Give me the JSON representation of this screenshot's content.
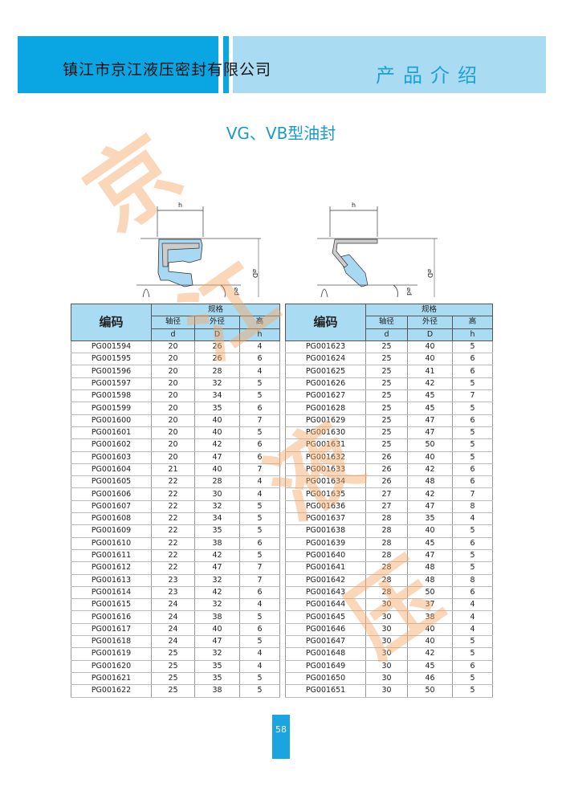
{
  "header": {
    "company": "镇江市京江液压密封有限公司",
    "section": "产品介绍"
  },
  "title": "VG、VB型油封",
  "watermark": [
    "京",
    "江",
    "液",
    "压"
  ],
  "diagram": {
    "h_label": "h",
    "D_label": "⌀D",
    "d_label": "⌀d"
  },
  "colors": {
    "header_blue": "#0aa6e3",
    "header_light": "#a9dcf3",
    "seal_blue": "#a9d8f2",
    "watermark": "#f7a765"
  },
  "table_headers": {
    "code": "编码",
    "spec": "规格",
    "shaft": "轴径",
    "outer": "外径",
    "height": "高",
    "d": "d",
    "D": "D",
    "h": "h"
  },
  "tables": [
    {
      "rows": [
        [
          "PG001594",
          "20",
          "26",
          "4"
        ],
        [
          "PG001595",
          "20",
          "26",
          "6"
        ],
        [
          "PG001596",
          "20",
          "28",
          "4"
        ],
        [
          "PG001597",
          "20",
          "32",
          "5"
        ],
        [
          "PG001598",
          "20",
          "34",
          "5"
        ],
        [
          "PG001599",
          "20",
          "35",
          "6"
        ],
        [
          "PG001600",
          "20",
          "40",
          "7"
        ],
        [
          "PG001601",
          "20",
          "40",
          "5"
        ],
        [
          "PG001602",
          "20",
          "42",
          "6"
        ],
        [
          "PG001603",
          "20",
          "47",
          "6"
        ],
        [
          "PG001604",
          "21",
          "40",
          "7"
        ],
        [
          "PG001605",
          "22",
          "28",
          "4"
        ],
        [
          "PG001606",
          "22",
          "30",
          "4"
        ],
        [
          "PG001607",
          "22",
          "32",
          "5"
        ],
        [
          "PG001608",
          "22",
          "34",
          "5"
        ],
        [
          "PG001609",
          "22",
          "35",
          "5"
        ],
        [
          "PG001610",
          "22",
          "38",
          "6"
        ],
        [
          "PG001611",
          "22",
          "42",
          "5"
        ],
        [
          "PG001612",
          "22",
          "47",
          "7"
        ],
        [
          "PG001613",
          "23",
          "32",
          "7"
        ],
        [
          "PG001614",
          "23",
          "42",
          "6"
        ],
        [
          "PG001615",
          "24",
          "32",
          "4"
        ],
        [
          "PG001616",
          "24",
          "38",
          "5"
        ],
        [
          "PG001617",
          "24",
          "40",
          "6"
        ],
        [
          "PG001618",
          "24",
          "47",
          "5"
        ],
        [
          "PG001619",
          "25",
          "32",
          "4"
        ],
        [
          "PG001620",
          "25",
          "35",
          "4"
        ],
        [
          "PG001621",
          "25",
          "35",
          "5"
        ],
        [
          "PG001622",
          "25",
          "38",
          "5"
        ]
      ]
    },
    {
      "rows": [
        [
          "PG001623",
          "25",
          "40",
          "5"
        ],
        [
          "PG001624",
          "25",
          "40",
          "6"
        ],
        [
          "PG001625",
          "25",
          "41",
          "6"
        ],
        [
          "PG001626",
          "25",
          "42",
          "5"
        ],
        [
          "PG001627",
          "25",
          "45",
          "7"
        ],
        [
          "PG001628",
          "25",
          "45",
          "5"
        ],
        [
          "PG001629",
          "25",
          "47",
          "6"
        ],
        [
          "PG001630",
          "25",
          "47",
          "5"
        ],
        [
          "PG001631",
          "25",
          "50",
          "5"
        ],
        [
          "PG001632",
          "26",
          "40",
          "5"
        ],
        [
          "PG001633",
          "26",
          "42",
          "6"
        ],
        [
          "PG001634",
          "26",
          "48",
          "6"
        ],
        [
          "PG001635",
          "27",
          "42",
          "7"
        ],
        [
          "PG001636",
          "27",
          "47",
          "8"
        ],
        [
          "PG001637",
          "28",
          "35",
          "4"
        ],
        [
          "PG001638",
          "28",
          "40",
          "5"
        ],
        [
          "PG001639",
          "28",
          "45",
          "6"
        ],
        [
          "PG001640",
          "28",
          "47",
          "5"
        ],
        [
          "PG001641",
          "28",
          "48",
          "5"
        ],
        [
          "PG001642",
          "28",
          "48",
          "8"
        ],
        [
          "PG001643",
          "28",
          "50",
          "6"
        ],
        [
          "PG001644",
          "30",
          "37",
          "4"
        ],
        [
          "PG001645",
          "30",
          "38",
          "4"
        ],
        [
          "PG001646",
          "30",
          "40",
          "4"
        ],
        [
          "PG001647",
          "30",
          "40",
          "5"
        ],
        [
          "PG001648",
          "30",
          "42",
          "5"
        ],
        [
          "PG001649",
          "30",
          "45",
          "6"
        ],
        [
          "PG001650",
          "30",
          "46",
          "5"
        ],
        [
          "PG001651",
          "30",
          "50",
          "5"
        ]
      ]
    }
  ],
  "page_number": "58"
}
